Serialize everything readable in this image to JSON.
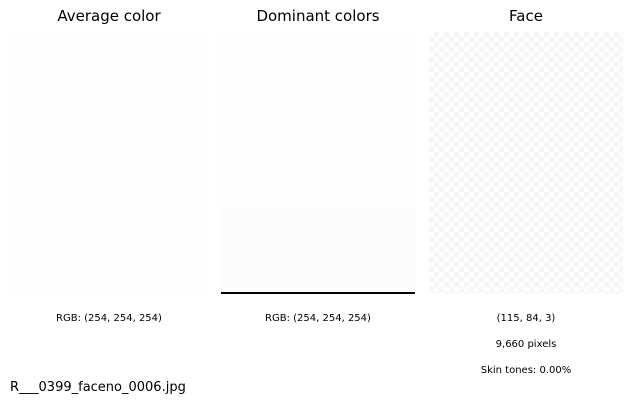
{
  "panels": {
    "average": {
      "title": "Average color",
      "rgb_label": "RGB: (254, 254, 254)",
      "color": "#fefefe"
    },
    "dominant": {
      "title": "Dominant colors",
      "rgb_label": "RGB: (254, 254, 254)",
      "colors": [
        "#fefefe",
        "#fcfcfc"
      ]
    },
    "face": {
      "title": "Face",
      "size_label": "(115, 84, 3)",
      "pixels_label": "9,660 pixels",
      "skin_label": "Skin tones: 0.00%"
    }
  },
  "filename": "R___0399_faceno_0006.jpg"
}
